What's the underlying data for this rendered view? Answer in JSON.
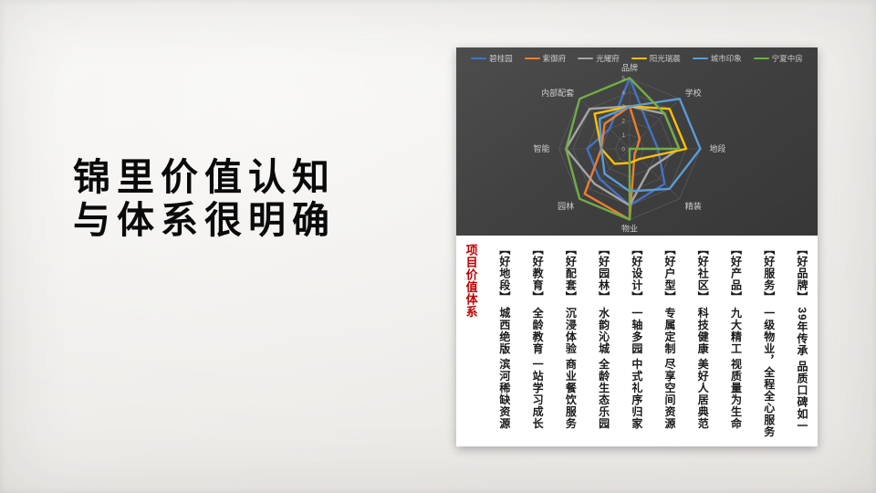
{
  "title": {
    "line1": "锦里价值认知",
    "line2": "与体系很明确"
  },
  "chart_data": {
    "type": "radar",
    "title": "",
    "axes": [
      "品牌",
      "学校",
      "地段",
      "精装",
      "物业",
      "园林",
      "智能",
      "内部配套"
    ],
    "scale": {
      "min": 0,
      "max": 5,
      "ticks": [
        0,
        1,
        2,
        3,
        4,
        5
      ]
    },
    "grid": true,
    "legend_position": "top",
    "background": "#414141",
    "series": [
      {
        "name": "碧桂园",
        "color": "#4472C4",
        "values": [
          5,
          2,
          2,
          3.5,
          4,
          3,
          3,
          2
        ]
      },
      {
        "name": "紫御府",
        "color": "#ED7D31",
        "values": [
          3,
          1,
          0.5,
          0.5,
          5,
          4.5,
          2,
          2.5
        ]
      },
      {
        "name": "光耀府",
        "color": "#A5A5A5",
        "values": [
          3,
          3.5,
          3.5,
          2,
          4,
          3.5,
          4.5,
          4
        ]
      },
      {
        "name": "阳光瑞晨",
        "color": "#FFC000",
        "values": [
          3,
          4,
          4,
          1,
          1,
          1.5,
          2,
          3.5
        ]
      },
      {
        "name": "城市印象",
        "color": "#5B9BD5",
        "values": [
          3,
          5,
          5,
          4,
          3,
          2.5,
          2,
          3
        ]
      },
      {
        "name": "宁夏中房",
        "color": "#70AD47",
        "values": [
          5,
          3.5,
          3.5,
          0,
          5,
          5,
          4.5,
          5
        ]
      }
    ]
  },
  "value_table": {
    "title": "项目价值体系",
    "title_color": "#C00000",
    "columns": [
      {
        "header": "【好地段】",
        "body": "城西绝版 滨河稀缺资源"
      },
      {
        "header": "【好教育】",
        "body": "全龄教育 一站学习成长"
      },
      {
        "header": "【好配套】",
        "body": "沉浸体验 商业餐饮服务"
      },
      {
        "header": "【好园林】",
        "body": "水韵沁城 全龄生态乐园"
      },
      {
        "header": "【好设计】",
        "body": "一轴多园 中式礼序归家"
      },
      {
        "header": "【好户型】",
        "body": "专属定制 尽享空间资源"
      },
      {
        "header": "【好社区】",
        "body": "科技健康 美好人居典范"
      },
      {
        "header": "【好产品】",
        "body": "九大精工 视质量为生命"
      },
      {
        "header": "【好服务】",
        "body": "一级物业，全程全心服务"
      },
      {
        "header": "【好品牌】",
        "body": "39年传承 品质口碑如一"
      }
    ]
  }
}
